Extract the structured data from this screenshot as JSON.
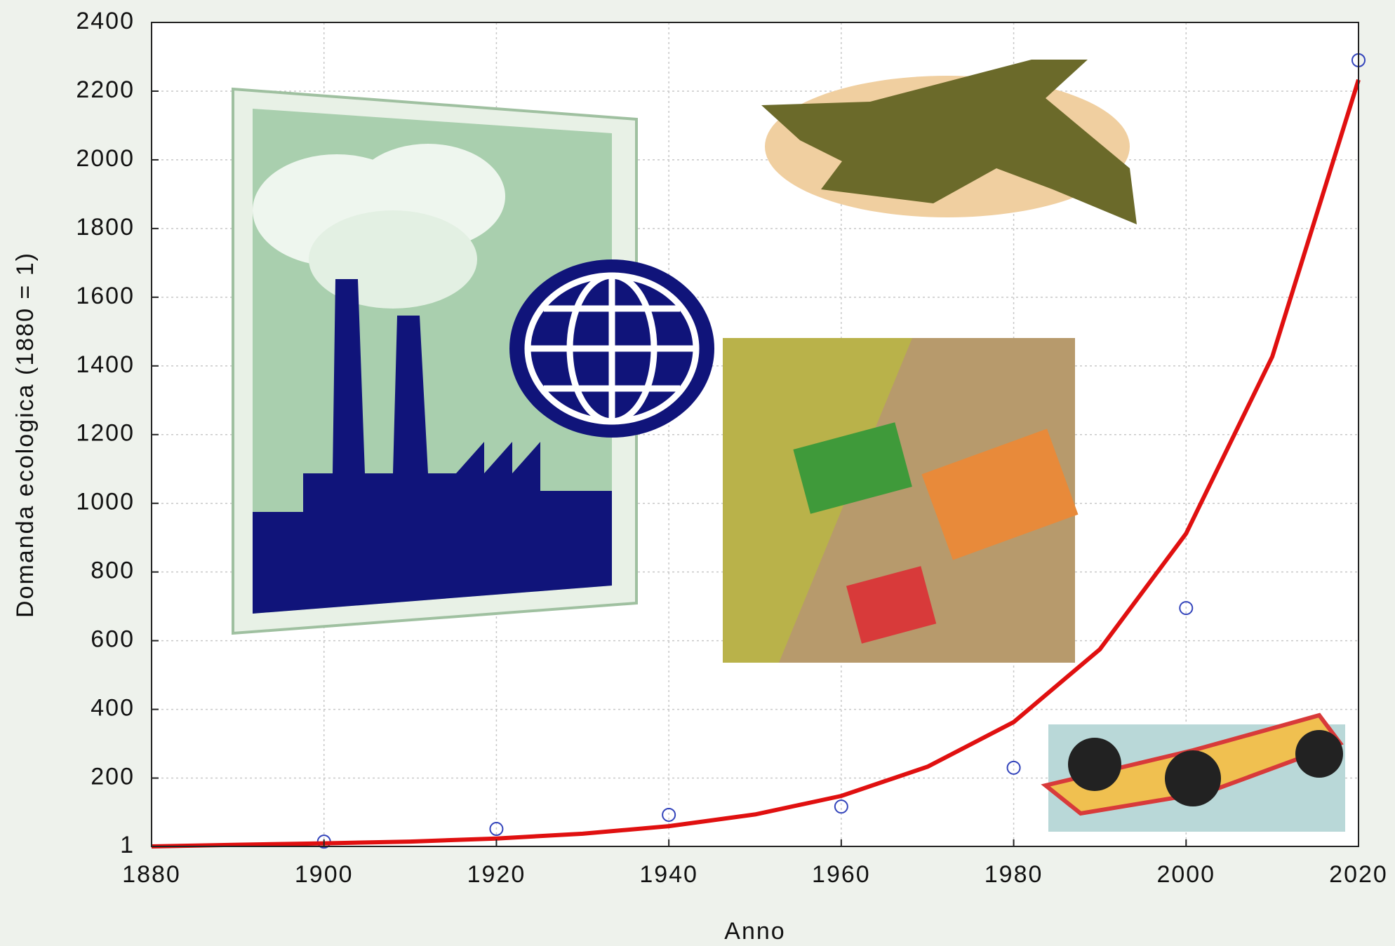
{
  "chart_data": {
    "type": "scatter",
    "y_label": "Domanda ecologica (1880 = 1)",
    "x_label": "Anno",
    "xlim": [
      1880,
      2020
    ],
    "xticks": [
      1880,
      1900,
      1920,
      1940,
      1960,
      1980,
      2000,
      2020
    ],
    "ylim": [
      1,
      2400
    ],
    "yticks": [
      1,
      200,
      400,
      600,
      800,
      1000,
      1200,
      1400,
      1600,
      1800,
      2000,
      2200,
      2400
    ],
    "grid": true,
    "series": [
      {
        "type": "scatter",
        "color": "#3344bb",
        "x": [
          1900,
          1920,
          1940,
          1960,
          1980,
          2000,
          2020
        ],
        "values": [
          15,
          52,
          93,
          117,
          230,
          695,
          2290
        ]
      },
      {
        "type": "line",
        "color": "#e01010",
        "x": [
          1880,
          1890,
          1900,
          1910,
          1920,
          1930,
          1940,
          1950,
          1960,
          1970,
          1980,
          1990,
          2000,
          2010,
          2020
        ],
        "values": [
          1,
          6,
          10,
          15,
          24,
          38,
          60,
          94,
          148,
          233,
          363,
          575,
          912,
          1427,
          2233
        ]
      }
    ]
  }
}
